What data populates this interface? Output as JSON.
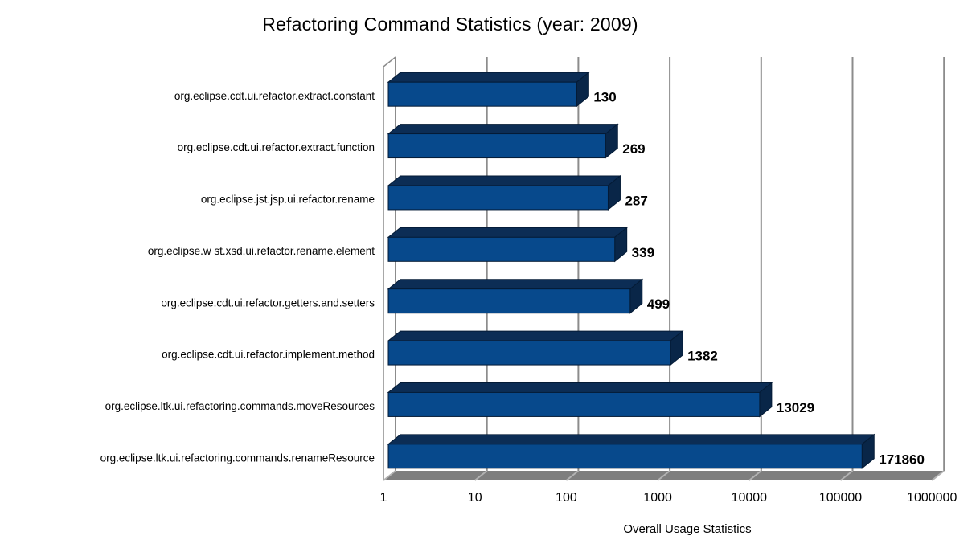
{
  "chart_data": {
    "type": "bar",
    "orientation": "horizontal",
    "scale": "log",
    "title": "Refactoring Command Statistics (year: 2009)",
    "xlabel": "Overall Usage Statistics",
    "ylabel": "",
    "categories": [
      "org.eclipse.cdt.ui.refactor.extract.constant",
      "org.eclipse.cdt.ui.refactor.extract.function",
      "org.eclipse.jst.jsp.ui.refactor.rename",
      "org.eclipse.w st.xsd.ui.refactor.rename.element",
      "org.eclipse.cdt.ui.refactor.getters.and.setters",
      "org.eclipse.cdt.ui.refactor.implement.method",
      "org.eclipse.ltk.ui.refactoring.commands.moveResources",
      "org.eclipse.ltk.ui.refactoring.commands.renameResource"
    ],
    "values": [
      130,
      269,
      287,
      339,
      499,
      1382,
      13029,
      171860
    ],
    "value_labels": [
      "130",
      "269",
      "287",
      "339",
      "499",
      "1382",
      "13029",
      "171860"
    ],
    "x_ticks": [
      "1",
      "10",
      "100",
      "1000",
      "10000",
      "100000",
      "1000000"
    ],
    "xlim": [
      1,
      1000000
    ],
    "grid": true,
    "legend": false,
    "colors": {
      "bar_front": "#07498C",
      "bar_top": "#0C2D55",
      "bar_side": "#092648",
      "bar_outline": "#041B36",
      "gridline": "#8C8C8C",
      "wall_line": "#8C8C8C",
      "floor": "#7E7E7E",
      "floor_gridline": "#B2B2B2",
      "text": "#000000",
      "background": "#FFFFFF"
    }
  }
}
